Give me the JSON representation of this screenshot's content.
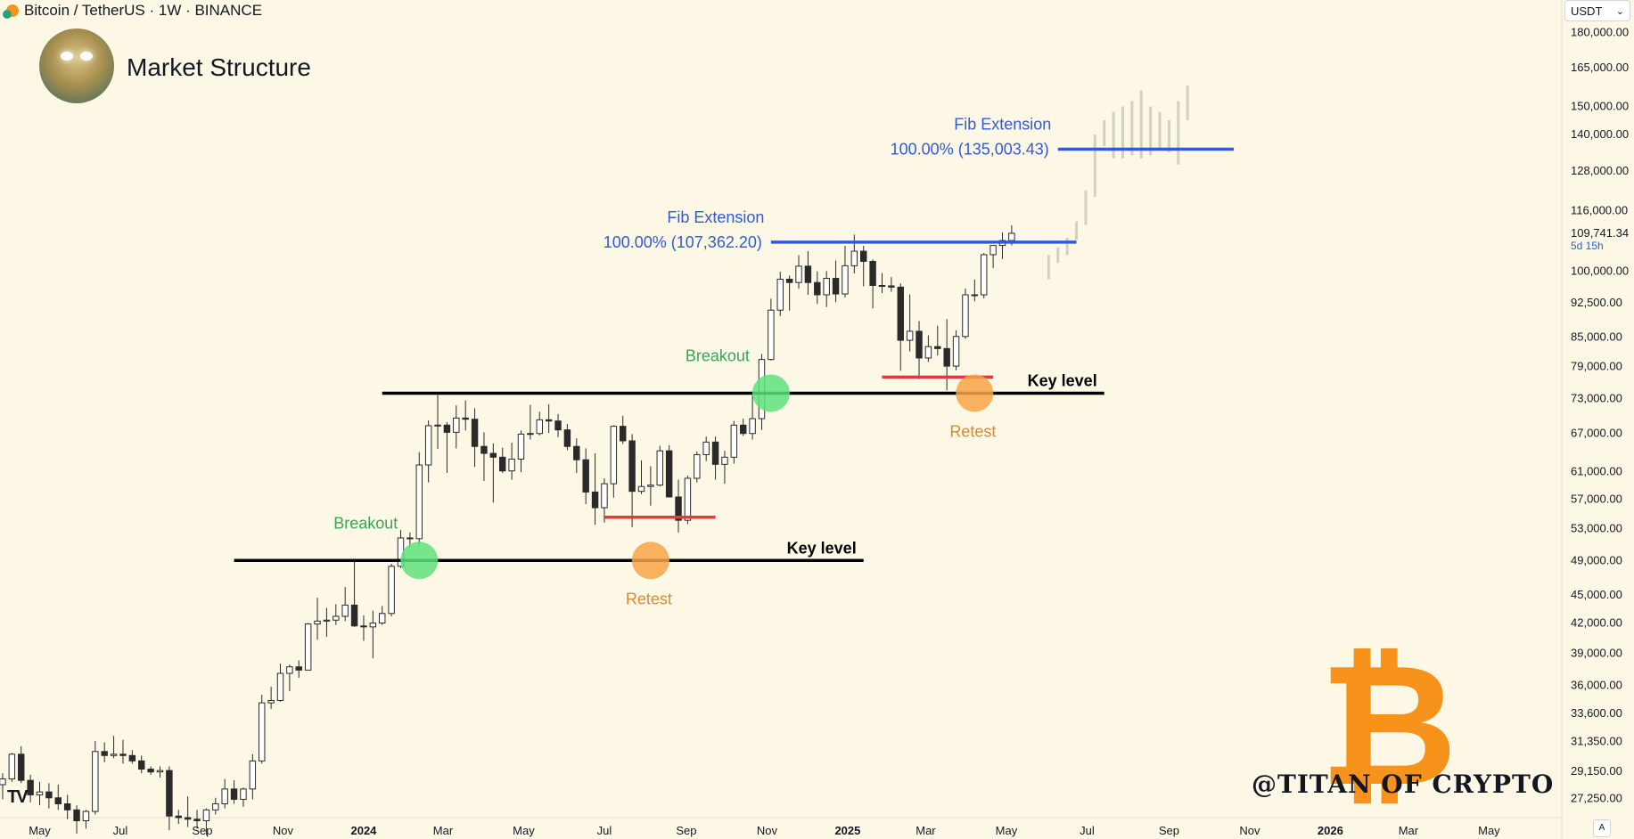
{
  "header": {
    "symbol": "Bitcoin / TetherUS · 1W · BINANCE",
    "title": "Market Structure"
  },
  "currency_selector": {
    "label": "USDT",
    "icon": "chevron-down-icon"
  },
  "last_price": {
    "value": "109,741.34",
    "countdown": "5d 15h"
  },
  "watermark": "@TITAN OF CRYPTO",
  "logo_glyph": "₿",
  "scale_button": "A",
  "colors": {
    "background": "#fdf8e6",
    "fib_line": "#2f5bd6",
    "key_level": "#000000",
    "support": "#e0393e",
    "breakout": "#5ee27a",
    "retest": "#f6a447",
    "projection": "#d2d0c2"
  },
  "chart_data": {
    "type": "candlestick",
    "timeframe": "1W",
    "y_scale": "log",
    "y_range": [
      26000,
      195000
    ],
    "y_ticks": [
      180000,
      165000,
      150000,
      140000,
      128000,
      116000,
      100000,
      92500,
      85000,
      79000,
      73000,
      67000,
      61000,
      57000,
      53000,
      49000,
      45000,
      42000,
      39000,
      36000,
      33600,
      31350,
      29150,
      27250
    ],
    "y_tick_labels": [
      "180,000.00",
      "165,000.00",
      "150,000.00",
      "140,000.00",
      "128,000.00",
      "116,000.00",
      "100,000.00",
      "92,500.00",
      "85,000.00",
      "79,000.00",
      "73,000.00",
      "67,000.00",
      "61,000.00",
      "57,000.00",
      "53,000.00",
      "49,000.00",
      "45,000.00",
      "42,000.00",
      "39,000.00",
      "36,000.00",
      "33,600.00",
      "31,350.00",
      "29,150.00",
      "27,250.00"
    ],
    "x_range": [
      "2023-04-01",
      "2026-06-25"
    ],
    "x_ticks": [
      {
        "date": "2023-05-01",
        "label": "May",
        "bold": false
      },
      {
        "date": "2023-07-01",
        "label": "Jul",
        "bold": false
      },
      {
        "date": "2023-09-01",
        "label": "Sep",
        "bold": false
      },
      {
        "date": "2023-11-01",
        "label": "Nov",
        "bold": false
      },
      {
        "date": "2024-01-01",
        "label": "2024",
        "bold": true
      },
      {
        "date": "2024-03-01",
        "label": "Mar",
        "bold": false
      },
      {
        "date": "2024-05-01",
        "label": "May",
        "bold": false
      },
      {
        "date": "2024-07-01",
        "label": "Jul",
        "bold": false
      },
      {
        "date": "2024-09-01",
        "label": "Sep",
        "bold": false
      },
      {
        "date": "2024-11-01",
        "label": "Nov",
        "bold": false
      },
      {
        "date": "2025-01-01",
        "label": "2025",
        "bold": true
      },
      {
        "date": "2025-03-01",
        "label": "Mar",
        "bold": false
      },
      {
        "date": "2025-05-01",
        "label": "May",
        "bold": false
      },
      {
        "date": "2025-07-01",
        "label": "Jul",
        "bold": false
      },
      {
        "date": "2025-09-01",
        "label": "Sep",
        "bold": false
      },
      {
        "date": "2025-11-01",
        "label": "Nov",
        "bold": false
      },
      {
        "date": "2026-01-01",
        "label": "2026",
        "bold": true
      },
      {
        "date": "2026-03-01",
        "label": "Mar",
        "bold": false
      },
      {
        "date": "2026-05-01",
        "label": "May",
        "bold": false
      }
    ],
    "candles_start": "2023-04-03",
    "candle_interval": "1 week",
    "candles": [
      [
        28200,
        29000,
        27200,
        28600
      ],
      [
        28600,
        30500,
        28400,
        30400
      ],
      [
        30400,
        31000,
        28300,
        28500
      ],
      [
        28500,
        28900,
        27000,
        27500
      ],
      [
        27500,
        28400,
        26800,
        27700
      ],
      [
        27700,
        28300,
        26600,
        27300
      ],
      [
        27300,
        28200,
        26500,
        26900
      ],
      [
        26900,
        27500,
        25900,
        26500
      ],
      [
        26500,
        26800,
        25000,
        25800
      ],
      [
        25800,
        26500,
        25300,
        26400
      ],
      [
        26400,
        31400,
        26200,
        30600
      ],
      [
        30600,
        31300,
        29800,
        30300
      ],
      [
        30300,
        31800,
        30100,
        30400
      ],
      [
        30400,
        31500,
        29700,
        30300
      ],
      [
        30300,
        30700,
        29700,
        29900
      ],
      [
        29900,
        30300,
        29000,
        29300
      ],
      [
        29300,
        29500,
        28900,
        29100
      ],
      [
        29100,
        29500,
        28700,
        29200
      ],
      [
        29200,
        29500,
        25200,
        26100
      ],
      [
        26100,
        26500,
        25600,
        26000
      ],
      [
        26000,
        27400,
        25400,
        25900
      ],
      [
        25900,
        26500,
        25300,
        25800
      ],
      [
        25800,
        26600,
        24900,
        26500
      ],
      [
        26500,
        27300,
        26200,
        26900
      ],
      [
        26900,
        28600,
        26600,
        27900
      ],
      [
        27900,
        28500,
        26900,
        27200
      ],
      [
        27200,
        28000,
        26700,
        27900
      ],
      [
        27900,
        30400,
        27200,
        29900
      ],
      [
        29900,
        35200,
        29700,
        34500
      ],
      [
        34500,
        35900,
        34000,
        34700
      ],
      [
        34700,
        38000,
        34600,
        37100
      ],
      [
        37100,
        37900,
        35500,
        37700
      ],
      [
        37700,
        38300,
        36700,
        37400
      ],
      [
        37400,
        42000,
        37400,
        41900
      ],
      [
        41900,
        44700,
        40300,
        42200
      ],
      [
        42200,
        43600,
        40600,
        42300
      ],
      [
        42300,
        44000,
        41800,
        42700
      ],
      [
        42700,
        45900,
        42200,
        43900
      ],
      [
        43900,
        48900,
        41600,
        41700
      ],
      [
        41700,
        42800,
        40200,
        41600
      ],
      [
        41600,
        43300,
        38500,
        42000
      ],
      [
        42000,
        43800,
        41800,
        43000
      ],
      [
        43000,
        48600,
        42700,
        48300
      ],
      [
        48300,
        52800,
        48100,
        51800
      ],
      [
        51800,
        52500,
        50600,
        51700
      ],
      [
        51700,
        64000,
        50900,
        62000
      ],
      [
        62000,
        69200,
        59400,
        68300
      ],
      [
        68300,
        73800,
        64500,
        68400
      ],
      [
        68400,
        68900,
        60800,
        67200
      ],
      [
        67200,
        71800,
        64600,
        69600
      ],
      [
        69600,
        72700,
        67500,
        69400
      ],
      [
        69400,
        71300,
        61700,
        64900
      ],
      [
        64900,
        67200,
        59600,
        63800
      ],
      [
        63800,
        65400,
        56500,
        63200
      ],
      [
        63200,
        64700,
        60800,
        61100
      ],
      [
        61100,
        65500,
        59800,
        62900
      ],
      [
        62900,
        67500,
        60900,
        66900
      ],
      [
        66900,
        71900,
        66000,
        67000
      ],
      [
        67000,
        70700,
        66700,
        69300
      ],
      [
        69300,
        72000,
        67100,
        69100
      ],
      [
        69100,
        70300,
        66400,
        67600
      ],
      [
        67600,
        68600,
        64300,
        64900
      ],
      [
        64900,
        66200,
        60800,
        62800
      ],
      [
        62800,
        64600,
        56300,
        58000
      ],
      [
        58000,
        63800,
        53500,
        55800
      ],
      [
        55800,
        60000,
        53800,
        59200
      ],
      [
        59200,
        68400,
        57200,
        68200
      ],
      [
        68200,
        70000,
        65300,
        65800
      ],
      [
        65800,
        66900,
        53200,
        58100
      ],
      [
        58100,
        62700,
        57700,
        58800
      ],
      [
        58800,
        61800,
        56100,
        59000
      ],
      [
        59000,
        65000,
        58800,
        64200
      ],
      [
        64200,
        65100,
        57900,
        57300
      ],
      [
        57300,
        59800,
        52500,
        54100
      ],
      [
        54100,
        60400,
        53600,
        60000
      ],
      [
        60000,
        64100,
        59400,
        63600
      ],
      [
        63600,
        66500,
        62600,
        65600
      ],
      [
        65600,
        66500,
        59800,
        62100
      ],
      [
        62100,
        64200,
        59200,
        63200
      ],
      [
        63200,
        69100,
        62200,
        68400
      ],
      [
        68400,
        69500,
        66600,
        67000
      ],
      [
        67000,
        73600,
        66000,
        69500
      ],
      [
        69500,
        81500,
        67600,
        80400
      ],
      [
        80400,
        93400,
        80200,
        90800
      ],
      [
        90800,
        99800,
        89500,
        98000
      ],
      [
        98000,
        98900,
        90700,
        97200
      ],
      [
        97200,
        104000,
        95700,
        101200
      ],
      [
        101200,
        105000,
        94300,
        97200
      ],
      [
        97200,
        99900,
        92200,
        94300
      ],
      [
        94300,
        100000,
        91500,
        98200
      ],
      [
        98200,
        102600,
        92600,
        94500
      ],
      [
        94500,
        106400,
        93700,
        101300
      ],
      [
        101300,
        109400,
        99400,
        105000
      ],
      [
        105000,
        106400,
        96300,
        102400
      ],
      [
        102400,
        102900,
        91200,
        96500
      ],
      [
        96500,
        99500,
        94700,
        96400
      ],
      [
        96400,
        98500,
        95000,
        96100
      ],
      [
        96100,
        97000,
        78200,
        84300
      ],
      [
        84300,
        94400,
        82000,
        86200
      ],
      [
        86200,
        88400,
        76600,
        80700
      ],
      [
        80700,
        85300,
        79900,
        83000
      ],
      [
        83000,
        87400,
        81200,
        82600
      ],
      [
        82600,
        88800,
        74500,
        79100
      ],
      [
        79100,
        86400,
        78300,
        85100
      ],
      [
        85100,
        95800,
        84600,
        94300
      ],
      [
        94300,
        97900,
        92800,
        94300
      ],
      [
        94300,
        104500,
        93500,
        104100
      ],
      [
        104100,
        106000,
        100700,
        106500
      ],
      [
        106500,
        110000,
        103000,
        107800
      ],
      [
        107800,
        111900,
        106500,
        109741
      ]
    ],
    "projection_start": "2025-06-02",
    "projection": [
      [
        104000,
        98000
      ],
      [
        106000,
        102000
      ],
      [
        108500,
        104000
      ],
      [
        113000,
        108000
      ],
      [
        122000,
        112000
      ],
      [
        140000,
        120000
      ],
      [
        145000,
        136000
      ],
      [
        148000,
        132000
      ],
      [
        150000,
        132000
      ],
      [
        152000,
        133000
      ],
      [
        156000,
        132000
      ],
      [
        150000,
        133000
      ],
      [
        148000,
        135000
      ],
      [
        145000,
        134000
      ],
      [
        152000,
        130000
      ],
      [
        158000,
        145000
      ]
    ],
    "levels": [
      {
        "name": "key-level-1",
        "price": 49000,
        "from": "2023-09-25",
        "to": "2025-01-13",
        "color": "#000000",
        "label": "Key level"
      },
      {
        "name": "key-level-2",
        "price": 74000,
        "from": "2024-01-15",
        "to": "2025-07-14",
        "color": "#000000",
        "label": "Key level"
      },
      {
        "name": "fib-1",
        "price": 107362.2,
        "from": "2024-11-04",
        "to": "2025-06-23",
        "color": "#2f5bd6",
        "label": "Fib Extension",
        "sublabel": "100.00% (107,362.20)"
      },
      {
        "name": "fib-2",
        "price": 135003.43,
        "from": "2025-06-09",
        "to": "2025-10-20",
        "color": "#2f5bd6",
        "label": "Fib Extension",
        "sublabel": "100.00% (135,003.43)"
      },
      {
        "name": "support-1",
        "price": 54500,
        "from": "2024-07-01",
        "to": "2024-09-23",
        "color": "#e0393e"
      },
      {
        "name": "support-2",
        "price": 77000,
        "from": "2025-01-27",
        "to": "2025-04-21",
        "color": "#e0393e"
      }
    ],
    "markers": [
      {
        "name": "breakout-1",
        "kind": "breakout",
        "date": "2024-02-12",
        "price": 49000,
        "label": "Breakout"
      },
      {
        "name": "retest-1",
        "kind": "retest",
        "date": "2024-08-05",
        "price": 49000,
        "label": "Retest"
      },
      {
        "name": "breakout-2",
        "kind": "breakout",
        "date": "2024-11-04",
        "price": 74000,
        "label": "Breakout"
      },
      {
        "name": "retest-2",
        "kind": "retest",
        "date": "2025-04-07",
        "price": 74000,
        "label": "Retest"
      }
    ]
  }
}
